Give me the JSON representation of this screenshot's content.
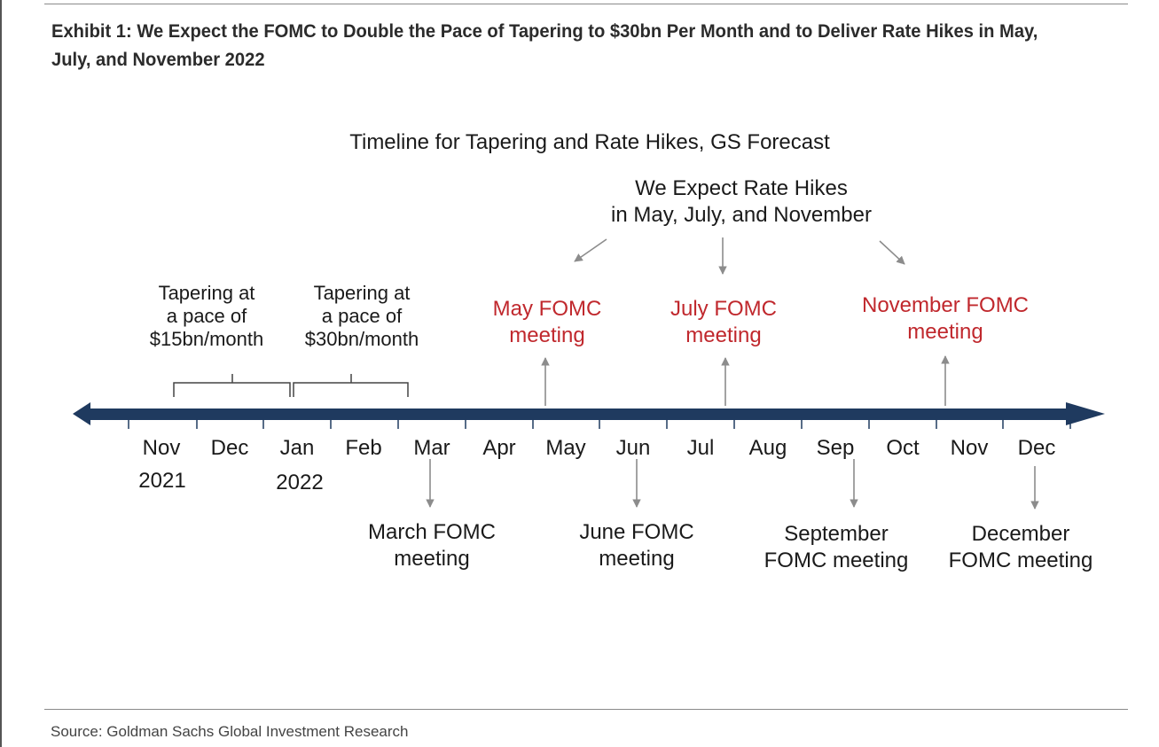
{
  "exhibit_title": "Exhibit 1: We Expect the FOMC to Double the Pace of Tapering to $30bn Per Month and to Deliver Rate Hikes in May, July, and November 2022",
  "chart_title": "Timeline for Tapering and Rate Hikes, GS Forecast",
  "hike_note": "We Expect Rate Hikes\nin May, July, and November",
  "taper_notes": [
    "Tapering at\na pace of\n$15bn/month",
    "Tapering at\na pace of\n$30bn/month"
  ],
  "months": [
    "Nov",
    "Dec",
    "Jan",
    "Feb",
    "Mar",
    "Apr",
    "May",
    "Jun",
    "Jul",
    "Aug",
    "Sep",
    "Oct",
    "Nov",
    "Dec"
  ],
  "years": [
    "2021",
    "2022"
  ],
  "hike_meetings": [
    "May FOMC\nmeeting",
    "July FOMC\nmeeting",
    "November FOMC\nmeeting"
  ],
  "other_meetings": [
    "March FOMC\nmeeting",
    "June FOMC\nmeeting",
    "September\nFOMC meeting",
    "December\nFOMC meeting"
  ],
  "source": "Source: Goldman Sachs Global Investment Research",
  "colors": {
    "axis": "#1f3a5f",
    "hike_text": "#c0282d",
    "arrow": "#8c8c8c"
  }
}
